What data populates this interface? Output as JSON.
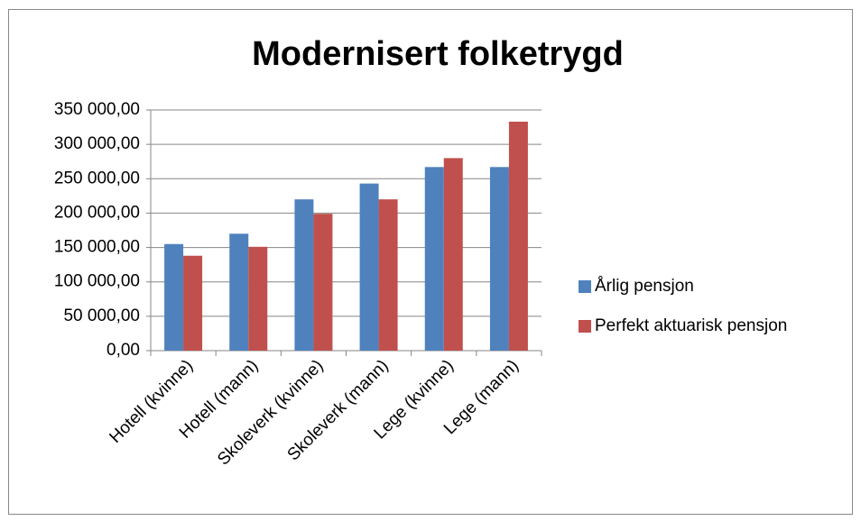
{
  "chart_data": {
    "type": "bar",
    "title": "Modernisert folketrygd",
    "categories": [
      "Hotell (kvinne)",
      "Hotell (mann)",
      "Skoleverk (kvinne)",
      "Skoleverk (mann)",
      "Lege (kvinne)",
      "Lege (mann)"
    ],
    "series": [
      {
        "name": "Årlig pensjon",
        "color": "#4f81bd",
        "values": [
          155000,
          170000,
          220000,
          243000,
          267000,
          267000
        ]
      },
      {
        "name": "Perfekt aktuarisk pensjon",
        "color": "#c0504d",
        "values": [
          138000,
          151000,
          199000,
          220000,
          280000,
          333000
        ]
      }
    ],
    "ylim": [
      0,
      350000
    ],
    "yticks": [
      {
        "value": 0,
        "label": "0,00"
      },
      {
        "value": 50000,
        "label": "50 000,00"
      },
      {
        "value": 100000,
        "label": "100 000,00"
      },
      {
        "value": 150000,
        "label": "150 000,00"
      },
      {
        "value": 200000,
        "label": "200 000,00"
      },
      {
        "value": 250000,
        "label": "250 000,00"
      },
      {
        "value": 300000,
        "label": "300 000,00"
      },
      {
        "value": 350000,
        "label": "350 000,00"
      }
    ],
    "grid": true,
    "legend": "right"
  }
}
